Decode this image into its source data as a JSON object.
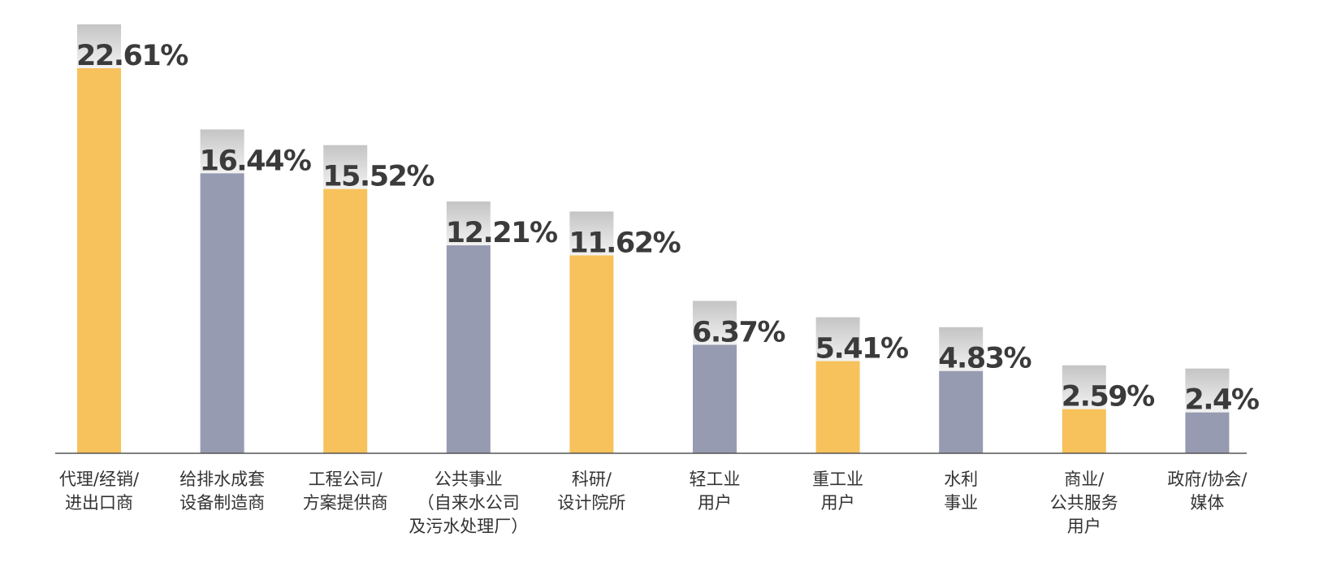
{
  "chart_data": {
    "type": "bar",
    "categories": [
      [
        "代理/经销/",
        "进出口商"
      ],
      [
        "给排水成套",
        "设备制造商"
      ],
      [
        "工程公司/",
        "方案提供商"
      ],
      [
        "公共事业",
        "（自来水公司",
        "及污水处理厂）"
      ],
      [
        "科研/",
        "设计院所"
      ],
      [
        "轻工业",
        "用户"
      ],
      [
        "重工业",
        "用户"
      ],
      [
        "水利",
        "事业"
      ],
      [
        "商业/",
        "公共服务",
        "用户"
      ],
      [
        "政府/协会/",
        "媒体"
      ]
    ],
    "values": [
      22.61,
      16.44,
      15.52,
      12.21,
      11.62,
      6.37,
      5.41,
      4.83,
      2.59,
      2.4
    ],
    "value_labels": [
      "22.61%",
      "16.44%",
      "15.52%",
      "12.21%",
      "11.62%",
      "6.37%",
      "5.41%",
      "4.83%",
      "2.59%",
      "2.4%"
    ],
    "title": "",
    "xlabel": "",
    "ylabel": "",
    "ylim": [
      0,
      22.61
    ],
    "grid": false,
    "legend": "none",
    "colors": {
      "bar_a": "#F7C25C",
      "bar_b": "#979BB1",
      "cap_top": "#c4c4c4",
      "cap_bottom": "#f2f2f2",
      "axis": "#555555",
      "label_text": "#333333",
      "value_text": "#3b3b3b"
    }
  }
}
